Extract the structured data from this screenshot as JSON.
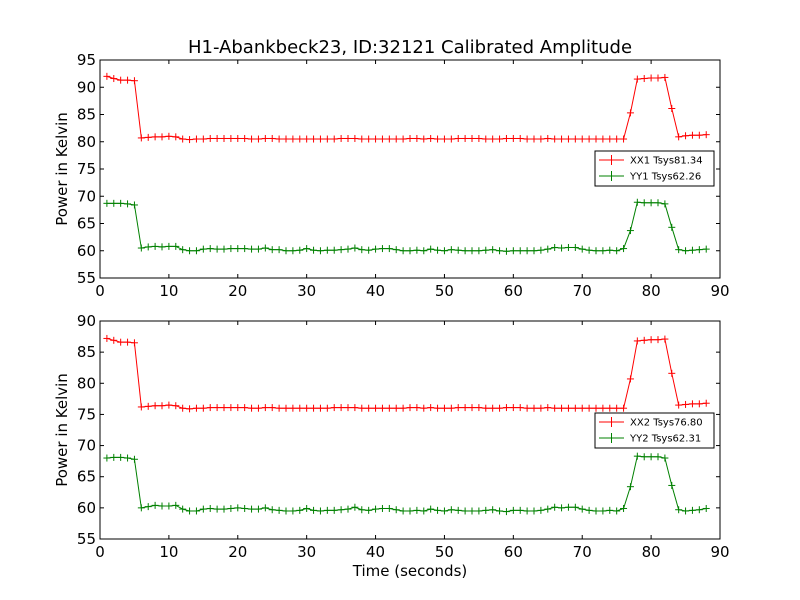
{
  "chart_data": [
    {
      "type": "line",
      "title": "H1-Abankbeck23, ID:32121 Calibrated Amplitude",
      "xlabel": "",
      "ylabel": "Power in Kelvin",
      "xlim": [
        0,
        90
      ],
      "ylim": [
        55,
        95
      ],
      "x_ticks": [
        "0",
        "10",
        "20",
        "30",
        "40",
        "50",
        "60",
        "70",
        "80",
        "90"
      ],
      "y_ticks": [
        "55",
        "60",
        "65",
        "70",
        "75",
        "80",
        "85",
        "90",
        "95"
      ],
      "grid": false,
      "legend_position": "center-right",
      "x": [
        1,
        2,
        3,
        4,
        5,
        6,
        7,
        8,
        9,
        10,
        11,
        12,
        13,
        14,
        15,
        16,
        17,
        18,
        19,
        20,
        21,
        22,
        23,
        24,
        25,
        26,
        27,
        28,
        29,
        30,
        31,
        32,
        33,
        34,
        35,
        36,
        37,
        38,
        39,
        40,
        41,
        42,
        43,
        44,
        45,
        46,
        47,
        48,
        49,
        50,
        51,
        52,
        53,
        54,
        55,
        56,
        57,
        58,
        59,
        60,
        61,
        62,
        63,
        64,
        65,
        66,
        67,
        68,
        69,
        70,
        71,
        72,
        73,
        74,
        75,
        76,
        77,
        78,
        79,
        80,
        81,
        82,
        83,
        84,
        85,
        86,
        87,
        88
      ],
      "series": [
        {
          "name": "XX1 Tsys81.34",
          "color": "#ff0000",
          "values": [
            92.0,
            91.6,
            91.3,
            91.3,
            91.2,
            80.7,
            80.8,
            80.9,
            80.9,
            81.0,
            80.9,
            80.5,
            80.4,
            80.5,
            80.5,
            80.6,
            80.6,
            80.6,
            80.6,
            80.6,
            80.6,
            80.5,
            80.5,
            80.6,
            80.6,
            80.5,
            80.5,
            80.5,
            80.5,
            80.5,
            80.5,
            80.5,
            80.5,
            80.5,
            80.6,
            80.6,
            80.6,
            80.5,
            80.5,
            80.5,
            80.5,
            80.5,
            80.5,
            80.5,
            80.6,
            80.6,
            80.5,
            80.6,
            80.5,
            80.5,
            80.5,
            80.6,
            80.6,
            80.6,
            80.6,
            80.5,
            80.5,
            80.5,
            80.6,
            80.6,
            80.6,
            80.5,
            80.5,
            80.5,
            80.6,
            80.5,
            80.5,
            80.5,
            80.5,
            80.5,
            80.5,
            80.5,
            80.5,
            80.5,
            80.5,
            80.5,
            85.3,
            91.5,
            91.6,
            91.7,
            91.7,
            91.8,
            86.1,
            80.9,
            81.1,
            81.2,
            81.2,
            81.3
          ]
        },
        {
          "name": "YY1 Tsys62.26",
          "color": "#008000",
          "values": [
            68.7,
            68.7,
            68.7,
            68.6,
            68.4,
            60.5,
            60.7,
            60.8,
            60.7,
            60.8,
            60.8,
            60.2,
            60.0,
            60.0,
            60.3,
            60.4,
            60.3,
            60.3,
            60.4,
            60.4,
            60.4,
            60.3,
            60.3,
            60.5,
            60.2,
            60.2,
            60.0,
            60.0,
            60.1,
            60.4,
            60.1,
            60.0,
            60.1,
            60.1,
            60.2,
            60.3,
            60.5,
            60.2,
            60.1,
            60.3,
            60.4,
            60.4,
            60.2,
            60.0,
            60.0,
            60.1,
            60.0,
            60.3,
            60.1,
            60.0,
            60.2,
            60.1,
            60.0,
            60.0,
            60.0,
            60.1,
            60.2,
            60.0,
            59.9,
            60.0,
            60.0,
            60.0,
            60.0,
            60.1,
            60.3,
            60.6,
            60.5,
            60.6,
            60.6,
            60.3,
            60.1,
            60.0,
            60.0,
            60.1,
            60.0,
            60.4,
            63.7,
            68.9,
            68.8,
            68.8,
            68.8,
            68.6,
            64.3,
            60.2,
            60.0,
            60.1,
            60.2,
            60.3
          ]
        }
      ]
    },
    {
      "type": "line",
      "title": "",
      "xlabel": "Time (seconds)",
      "ylabel": "Power in Kelvin",
      "xlim": [
        0,
        90
      ],
      "ylim": [
        55,
        90
      ],
      "x_ticks": [
        "0",
        "10",
        "20",
        "30",
        "40",
        "50",
        "60",
        "70",
        "80",
        "90"
      ],
      "y_ticks": [
        "55",
        "60",
        "65",
        "70",
        "75",
        "80",
        "85",
        "90"
      ],
      "grid": false,
      "legend_position": "center-right",
      "x": [
        1,
        2,
        3,
        4,
        5,
        6,
        7,
        8,
        9,
        10,
        11,
        12,
        13,
        14,
        15,
        16,
        17,
        18,
        19,
        20,
        21,
        22,
        23,
        24,
        25,
        26,
        27,
        28,
        29,
        30,
        31,
        32,
        33,
        34,
        35,
        36,
        37,
        38,
        39,
        40,
        41,
        42,
        43,
        44,
        45,
        46,
        47,
        48,
        49,
        50,
        51,
        52,
        53,
        54,
        55,
        56,
        57,
        58,
        59,
        60,
        61,
        62,
        63,
        64,
        65,
        66,
        67,
        68,
        69,
        70,
        71,
        72,
        73,
        74,
        75,
        76,
        77,
        78,
        79,
        80,
        81,
        82,
        83,
        84,
        85,
        86,
        87,
        88
      ],
      "series": [
        {
          "name": "XX2 Tsys76.80",
          "color": "#ff0000",
          "values": [
            87.2,
            86.9,
            86.6,
            86.6,
            86.5,
            76.2,
            76.3,
            76.4,
            76.4,
            76.5,
            76.4,
            76.0,
            75.9,
            76.0,
            76.0,
            76.1,
            76.1,
            76.1,
            76.1,
            76.1,
            76.1,
            76.0,
            76.0,
            76.1,
            76.1,
            76.0,
            76.0,
            76.0,
            76.0,
            76.0,
            76.0,
            76.0,
            76.0,
            76.1,
            76.1,
            76.1,
            76.1,
            76.0,
            76.0,
            76.0,
            76.0,
            76.0,
            76.0,
            76.0,
            76.1,
            76.1,
            76.0,
            76.1,
            76.0,
            76.0,
            76.0,
            76.1,
            76.1,
            76.1,
            76.1,
            76.0,
            76.0,
            76.0,
            76.1,
            76.1,
            76.1,
            76.0,
            76.0,
            76.0,
            76.1,
            76.0,
            76.0,
            76.0,
            76.0,
            76.0,
            76.0,
            76.0,
            76.0,
            76.0,
            76.0,
            76.0,
            80.7,
            86.8,
            86.9,
            87.0,
            87.0,
            87.1,
            81.6,
            76.5,
            76.6,
            76.7,
            76.7,
            76.8
          ]
        },
        {
          "name": "YY2 Tsys62.31",
          "color": "#008000",
          "values": [
            68.0,
            68.1,
            68.1,
            68.0,
            67.8,
            60.0,
            60.2,
            60.4,
            60.3,
            60.3,
            60.4,
            59.8,
            59.5,
            59.5,
            59.8,
            59.9,
            59.8,
            59.8,
            59.9,
            60.0,
            59.9,
            59.8,
            59.8,
            60.0,
            59.7,
            59.6,
            59.5,
            59.5,
            59.6,
            59.9,
            59.6,
            59.5,
            59.6,
            59.6,
            59.7,
            59.8,
            60.1,
            59.7,
            59.6,
            59.8,
            59.9,
            59.9,
            59.7,
            59.5,
            59.5,
            59.6,
            59.5,
            59.8,
            59.6,
            59.5,
            59.7,
            59.6,
            59.5,
            59.5,
            59.5,
            59.6,
            59.7,
            59.5,
            59.4,
            59.6,
            59.6,
            59.5,
            59.5,
            59.6,
            59.8,
            60.1,
            60.0,
            60.1,
            60.1,
            59.8,
            59.6,
            59.5,
            59.5,
            59.6,
            59.5,
            59.9,
            63.4,
            68.3,
            68.2,
            68.2,
            68.2,
            68.0,
            63.6,
            59.7,
            59.5,
            59.6,
            59.7,
            59.9
          ]
        }
      ]
    }
  ]
}
